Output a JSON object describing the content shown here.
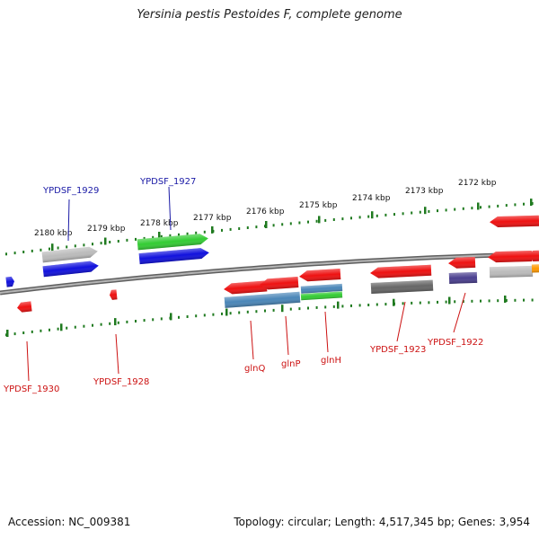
{
  "title": "Yersinia pestis Pestoides F, complete genome",
  "accession": "Accession: NC_009381",
  "summary": "Topology: circular; Length: 4,517,345 bp; Genes: 3,954",
  "colors": {
    "backbone": "#8a8a8a",
    "scale_ticks": "#1f7a1f",
    "label_forward": "#1a1aa6",
    "label_reverse": "#cc1111",
    "gene_red": "#ee1111",
    "gene_blue": "#1111dd",
    "gene_green": "#33cc33",
    "gene_gray": "#bbbbbb",
    "gene_dark_gray": "#666666",
    "gene_steel": "#4a86b8",
    "gene_purple": "#4a3f8f",
    "gene_orange": "#ff9900"
  },
  "scale_labels": [
    {
      "id": "kbp-2180",
      "text": "2180 kbp"
    },
    {
      "id": "kbp-2179",
      "text": "2179 kbp"
    },
    {
      "id": "kbp-2178",
      "text": "2178 kbp"
    },
    {
      "id": "kbp-2177",
      "text": "2177 kbp"
    },
    {
      "id": "kbp-2176",
      "text": "2176 kbp"
    },
    {
      "id": "kbp-2175",
      "text": "2175 kbp"
    },
    {
      "id": "kbp-2174",
      "text": "2174 kbp"
    },
    {
      "id": "kbp-2173",
      "text": "2173 kbp"
    },
    {
      "id": "kbp-2172",
      "text": "2172 kbp"
    }
  ],
  "gene_labels": [
    {
      "id": "ypdsf-1929",
      "text": "YPDSF_1929",
      "strand": "forward"
    },
    {
      "id": "ypdsf-1927",
      "text": "YPDSF_1927",
      "strand": "forward"
    },
    {
      "id": "ypdsf-1930",
      "text": "YPDSF_1930",
      "strand": "reverse"
    },
    {
      "id": "ypdsf-1928",
      "text": "YPDSF_1928",
      "strand": "reverse"
    },
    {
      "id": "glnq",
      "text": "glnQ",
      "strand": "reverse"
    },
    {
      "id": "glnp",
      "text": "glnP",
      "strand": "reverse"
    },
    {
      "id": "glnh",
      "text": "glnH",
      "strand": "reverse"
    },
    {
      "id": "ypdsf-1923",
      "text": "YPDSF_1923",
      "strand": "reverse"
    },
    {
      "id": "ypdsf-1922",
      "text": "YPDSF_1922",
      "strand": "reverse"
    }
  ]
}
